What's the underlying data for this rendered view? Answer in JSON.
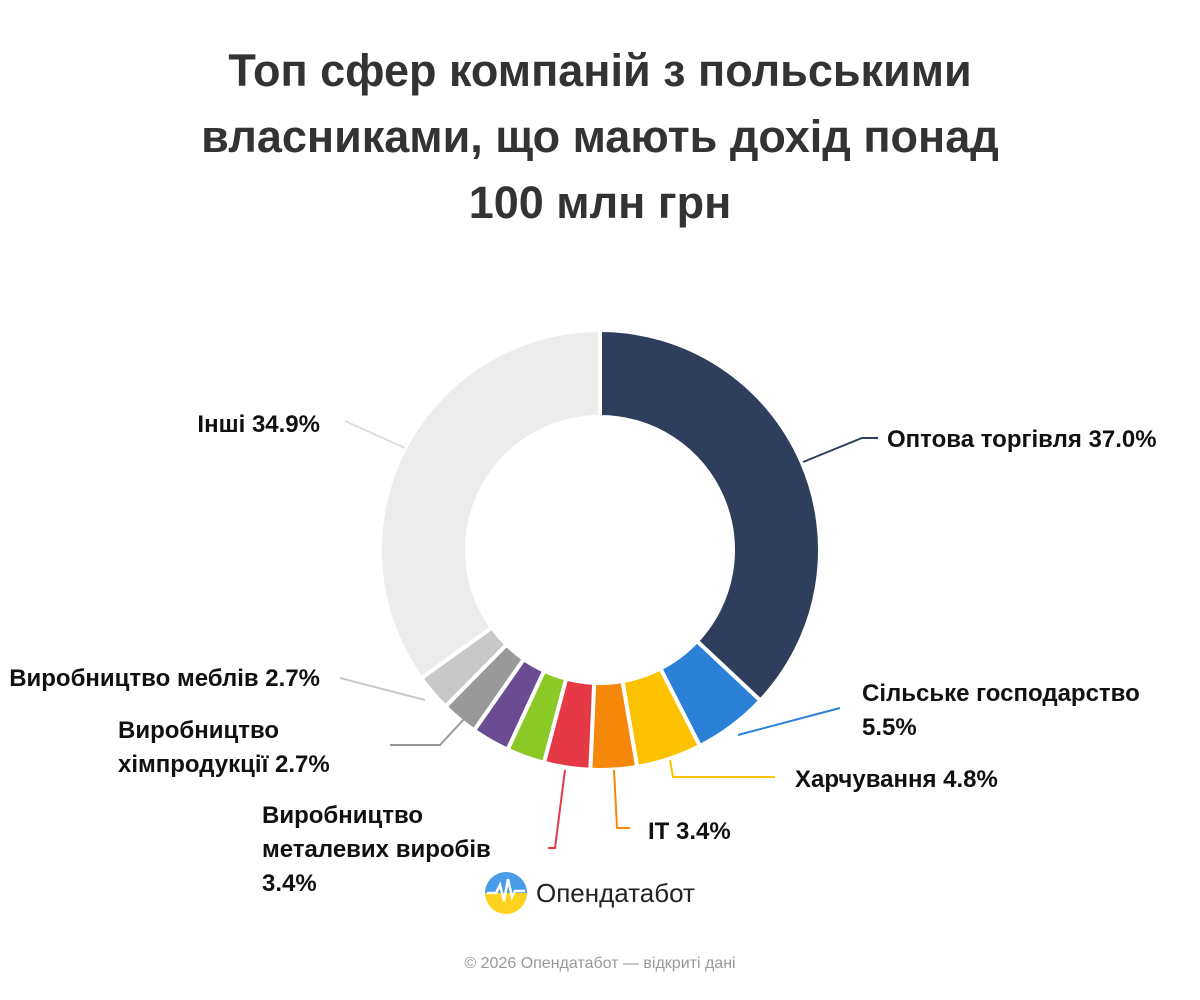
{
  "chart_data": {
    "type": "donut",
    "title": "Топ сфер компаній з польськими власниками, що мають дохід понад 100 млн грн",
    "categories": [
      "Оптова торгівля",
      "Сільське господарство",
      "Харчування",
      "IT",
      "Виробництво металевих виробів",
      null,
      null,
      "Виробництво хімпродукції",
      "Виробництво меблів",
      "Інші"
    ],
    "values": [
      37.0,
      5.5,
      4.8,
      3.4,
      3.4,
      2.8,
      2.8,
      2.7,
      2.7,
      34.9
    ],
    "value_labels": [
      "37.0%",
      "5.5%",
      "4.8%",
      "3.4%",
      "3.4%",
      null,
      null,
      "2.7%",
      "2.7%",
      "34.9%"
    ],
    "colors": [
      "#2e3e5c",
      "#2b80d8",
      "#fcc200",
      "#f5870a",
      "#e63946",
      "#8ac926",
      "#6a4c93",
      "#999999",
      "#c8c8c8",
      "#ececec"
    ]
  },
  "brand": "Опендатабот",
  "footer": "© 2026 Опендатабот — відкриті дані"
}
